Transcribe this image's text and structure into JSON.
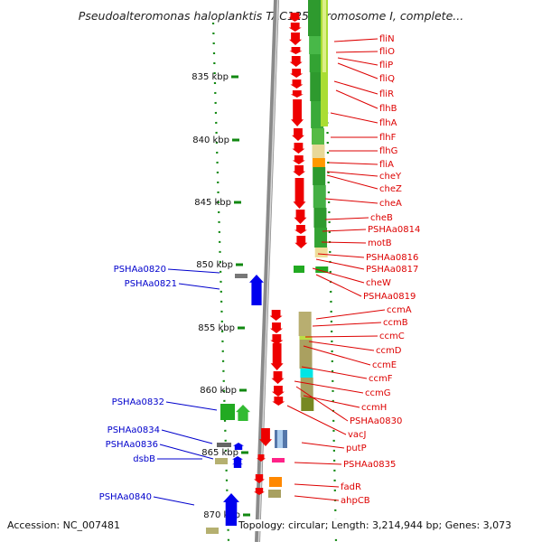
{
  "title": "Pseudoalteromonas haloplanktis TAC125 chromosome I, complete...",
  "accession": "Accession: NC_007481",
  "topology": "Topology: circular; Length: 3,214,944 bp; Genes: 3,073",
  "colors": {
    "forward_gene": "#ee0000",
    "reverse_gene": "#0000ee",
    "forward_label": "#dd0000",
    "reverse_label": "#0000cc",
    "backbone": "#888888",
    "tick": "#118811",
    "cog_green": "#22aa22",
    "cog_olive": "#a8a060",
    "cog_orange": "#ff8800",
    "cog_cyan": "#00e5e5",
    "cog_magenta": "#ff2288"
  },
  "kbp_ticks": [
    "835 kbp",
    "840 kbp",
    "845 kbp",
    "850 kbp",
    "855 kbp",
    "860 kbp",
    "865 kbp",
    "870 kbp"
  ],
  "forward_labels": [
    "fliN",
    "fliO",
    "fliP",
    "fliQ",
    "fliR",
    "flhB",
    "flhA",
    "flhF",
    "flhG",
    "fliA",
    "cheY",
    "cheZ",
    "cheA",
    "cheB",
    "PSHAa0814",
    "motB",
    "PSHAa0816",
    "PSHAa0817",
    "cheW",
    "PSHAa0819",
    "ccmA",
    "ccmB",
    "ccmC",
    "ccmD",
    "ccmE",
    "ccmF",
    "ccmG",
    "ccmH",
    "PSHAa0830",
    "vacJ",
    "putP",
    "PSHAa0835",
    "fadR",
    "ahpCB"
  ],
  "reverse_labels": [
    "PSHAa0820",
    "PSHAa0821",
    "PSHAa0832",
    "PSHAa0834",
    "PSHAa0836",
    "dsbB",
    "PSHAa0840"
  ]
}
